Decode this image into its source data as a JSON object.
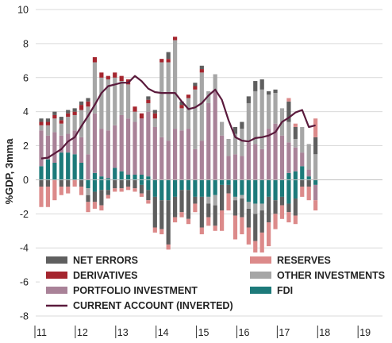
{
  "chart_data": {
    "type": "bar",
    "stacked": true,
    "ylabel": "%GDP, 3mma",
    "ylim": [
      -8,
      10
    ],
    "yticks": [
      -8,
      -6,
      -4,
      -2,
      0,
      2,
      4,
      6,
      8,
      10
    ],
    "xtick_labels": [
      "11",
      "12",
      "13",
      "14",
      "15",
      "16",
      "17",
      "18",
      "19"
    ],
    "grid": "horizontal",
    "legend_position": "bottom-inside",
    "colors": {
      "net_errors": "#5f5f5f",
      "derivatives": "#a5252e",
      "portfolio": "#a98298",
      "other": "#a6a6a6",
      "reserves": "#dc8a8a",
      "fdi": "#1d7a7a",
      "current_account": "#5a1a3c"
    },
    "series": [
      {
        "name": "NET ERRORS",
        "key": "net_errors",
        "values": [
          [
            0.2,
            -0.4
          ],
          [
            0.2,
            -0.4
          ],
          [
            0.2,
            0
          ],
          [
            0.2,
            -0.4
          ],
          [
            0.2,
            -0.4
          ],
          [
            0.2,
            0
          ],
          [
            0.2,
            -0.4
          ],
          [
            0.2,
            -0.4
          ],
          [
            0,
            -0.6
          ],
          [
            0,
            -0.9
          ],
          [
            0,
            -0.3
          ],
          [
            0,
            -0.5
          ],
          [
            0,
            -0.5
          ],
          [
            0,
            -0.4
          ],
          [
            0,
            -0.5
          ],
          [
            0,
            -0.5
          ],
          [
            0.2,
            -0.6
          ],
          [
            0.2,
            -1.8
          ],
          [
            0,
            -1.7
          ],
          [
            0.4,
            -2.6
          ],
          [
            0,
            -1.2
          ],
          [
            0.2,
            -1.3
          ],
          [
            0,
            -1.7
          ],
          [
            0.2,
            -0.4
          ],
          [
            0.2,
            -1.8
          ],
          [
            0,
            -0.8
          ],
          [
            0,
            -1.2
          ],
          [
            0,
            -1.5
          ],
          [
            0,
            -0.5
          ],
          [
            0.4,
            -0.9
          ],
          [
            0.4,
            -1.1
          ],
          [
            0.4,
            -1.1
          ],
          [
            0.6,
            -1.6
          ],
          [
            0.6,
            -1.3
          ],
          [
            0.2,
            -1.5
          ],
          [
            0.2,
            -0.8
          ],
          [
            0,
            -0.5
          ],
          [
            1.2,
            -0.5
          ],
          [
            0.7,
            -1.0
          ],
          [
            0,
            -0.4
          ],
          [
            0,
            -0.4
          ],
          [
            1,
            0
          ]
        ]
      },
      {
        "name": "DERIVATIVES",
        "key": "derivatives",
        "values": [
          [
            0.2,
            0
          ],
          [
            0.2,
            0
          ],
          [
            0.2,
            0
          ],
          [
            0.2,
            0
          ],
          [
            0.2,
            0
          ],
          [
            0.2,
            0
          ],
          [
            0.3,
            0
          ],
          [
            0.3,
            0
          ],
          [
            0.3,
            0
          ],
          [
            0.3,
            0
          ],
          [
            0.2,
            0
          ],
          [
            0.3,
            0
          ],
          [
            0.3,
            0
          ],
          [
            0.3,
            0
          ],
          [
            0.3,
            0
          ],
          [
            0.3,
            0
          ],
          [
            0.2,
            0
          ],
          [
            0.3,
            0
          ],
          [
            0.2,
            0
          ],
          [
            0.2,
            0
          ],
          [
            0.2,
            0
          ],
          [
            0.2,
            0
          ],
          [
            0.2,
            0
          ],
          [
            0.2,
            0
          ],
          [
            0.2,
            0
          ],
          [
            0,
            0
          ],
          [
            0,
            0
          ],
          [
            0,
            0
          ],
          [
            0,
            0
          ],
          [
            0,
            0
          ],
          [
            0,
            0
          ],
          [
            0,
            0
          ],
          [
            0,
            0
          ],
          [
            0,
            0
          ],
          [
            0,
            0
          ],
          [
            0,
            0
          ],
          [
            0,
            0
          ],
          [
            0,
            0
          ],
          [
            0,
            0
          ],
          [
            0,
            0
          ],
          [
            0,
            0
          ],
          [
            0,
            0
          ]
        ]
      },
      {
        "name": "RESERVES",
        "key": "reserves",
        "values": [
          [
            0,
            -1.2
          ],
          [
            0,
            -1.2
          ],
          [
            0,
            -1.2
          ],
          [
            0,
            -0.5
          ],
          [
            0,
            -0.4
          ],
          [
            0,
            -0.4
          ],
          [
            0,
            -0.5
          ],
          [
            0,
            -0.6
          ],
          [
            0,
            -0.4
          ],
          [
            0,
            -0.3
          ],
          [
            0,
            -0.2
          ],
          [
            0,
            -0.2
          ],
          [
            0,
            -0.2
          ],
          [
            0,
            -0.2
          ],
          [
            0,
            -0.2
          ],
          [
            0,
            -0.2
          ],
          [
            0,
            -0.2
          ],
          [
            0,
            -0.3
          ],
          [
            0,
            -0.3
          ],
          [
            0,
            -0.3
          ],
          [
            0,
            -0.3
          ],
          [
            0,
            -0.3
          ],
          [
            0,
            -0.3
          ],
          [
            0,
            -0.5
          ],
          [
            0,
            -0.4
          ],
          [
            0,
            -0.5
          ],
          [
            0,
            -0.3
          ],
          [
            0,
            -1.2
          ],
          [
            0,
            -1.0
          ],
          [
            0,
            -1.4
          ],
          [
            0,
            -1.0
          ],
          [
            0,
            -1.0
          ],
          [
            0,
            -1.4
          ],
          [
            0,
            -1.4
          ],
          [
            0,
            -1.4
          ],
          [
            0,
            -0.9
          ],
          [
            0,
            -0.8
          ],
          [
            0.2,
            -0.6
          ],
          [
            0.2,
            -0.5
          ],
          [
            0,
            -0.6
          ],
          [
            0,
            -0.8
          ],
          [
            1.1,
            -0.6
          ]
        ]
      },
      {
        "name": "OTHER INVESTMENTS",
        "key": "other",
        "values": [
          [
            0.3,
            0
          ],
          [
            0.6,
            0
          ],
          [
            0.8,
            0
          ],
          [
            0.7,
            0
          ],
          [
            1.0,
            0
          ],
          [
            0.9,
            0
          ],
          [
            1.6,
            0
          ],
          [
            2.8,
            -0.4
          ],
          [
            3.0,
            0
          ],
          [
            3.0,
            0
          ],
          [
            3.0,
            0
          ],
          [
            2.8,
            0
          ],
          [
            2.0,
            0
          ],
          [
            2.0,
            0
          ],
          [
            0.6,
            0
          ],
          [
            0,
            0
          ],
          [
            0.5,
            0
          ],
          [
            0.5,
            0
          ],
          [
            4.4,
            0
          ],
          [
            4.6,
            0
          ],
          [
            5.2,
            0
          ],
          [
            1.3,
            0
          ],
          [
            1.8,
            0
          ],
          [
            3.5,
            0
          ],
          [
            4.0,
            0
          ],
          [
            0.7,
            -0.4
          ],
          [
            1.0,
            -0.6
          ],
          [
            0.8,
            0
          ],
          [
            1.0,
            0
          ],
          [
            1.2,
            -0.2
          ],
          [
            1.6,
            -0.2
          ],
          [
            2.3,
            -0.4
          ],
          [
            3.1,
            -0.6
          ],
          [
            3.5,
            -0.4
          ],
          [
            2.0,
            0
          ],
          [
            1.8,
            0
          ],
          [
            1.6,
            0
          ],
          [
            1.2,
            0
          ],
          [
            0.5,
            0
          ],
          [
            1.5,
            0
          ],
          [
            1.5,
            0
          ],
          [
            1.5,
            0
          ]
        ]
      },
      {
        "name": "PORTFOLIO INVESTMENT",
        "key": "portfolio",
        "values": [
          [
            2.1,
            0
          ],
          [
            1.4,
            0
          ],
          [
            1.8,
            0
          ],
          [
            1.0,
            0
          ],
          [
            1.1,
            0
          ],
          [
            1.4,
            0
          ],
          [
            1.5,
            0
          ],
          [
            1.5,
            0
          ],
          [
            3.5,
            0
          ],
          [
            2.8,
            0
          ],
          [
            2.8,
            0
          ],
          [
            2.5,
            0
          ],
          [
            3.3,
            0
          ],
          [
            3.3,
            0
          ],
          [
            3.1,
            0
          ],
          [
            3.3,
            0
          ],
          [
            3.8,
            0
          ],
          [
            3.1,
            0
          ],
          [
            2.5,
            0
          ],
          [
            2.3,
            0
          ],
          [
            3.0,
            0
          ],
          [
            2.9,
            0
          ],
          [
            3.0,
            0
          ],
          [
            1.8,
            0
          ],
          [
            2.3,
            0
          ],
          [
            4.5,
            0
          ],
          [
            5.2,
            0
          ],
          [
            2.6,
            0
          ],
          [
            1.4,
            0
          ],
          [
            1.5,
            0
          ],
          [
            1.4,
            0
          ],
          [
            2.2,
            0
          ],
          [
            2.1,
            0
          ],
          [
            1.8,
            0
          ],
          [
            3.0,
            0
          ],
          [
            3.3,
            0
          ],
          [
            2.6,
            0
          ],
          [
            1.8,
            0
          ],
          [
            1.4,
            0
          ],
          [
            0.8,
            0
          ],
          [
            0.4,
            0
          ],
          [
            0,
            -0.9
          ]
        ]
      },
      {
        "name": "FDI",
        "key": "fdi",
        "values": [
          [
            0.8,
            0
          ],
          [
            1.2,
            0
          ],
          [
            1.0,
            0
          ],
          [
            1.6,
            0
          ],
          [
            1.6,
            0
          ],
          [
            1.5,
            0
          ],
          [
            1.0,
            0
          ],
          [
            0,
            -0.5
          ],
          [
            0.4,
            -0.7
          ],
          [
            0.2,
            -0.6
          ],
          [
            0.1,
            -0.6
          ],
          [
            0.7,
            0
          ],
          [
            0.5,
            0
          ],
          [
            0.3,
            0
          ],
          [
            0.3,
            0
          ],
          [
            0.3,
            -0.3
          ],
          [
            0.2,
            -0.6
          ],
          [
            0,
            -1.0
          ],
          [
            0,
            -1.2
          ],
          [
            0,
            -1.2
          ],
          [
            0,
            -1.0
          ],
          [
            0,
            -0.6
          ],
          [
            0,
            -0.6
          ],
          [
            0,
            -1.0
          ],
          [
            0,
            -1.0
          ],
          [
            0,
            -1.0
          ],
          [
            0,
            -0.9
          ],
          [
            0,
            -0.3
          ],
          [
            0,
            -0.3
          ],
          [
            0,
            -1.0
          ],
          [
            0,
            -0.9
          ],
          [
            0,
            -1.3
          ],
          [
            0,
            -1.4
          ],
          [
            0,
            -1.4
          ],
          [
            0,
            -1.0
          ],
          [
            0,
            -1.2
          ],
          [
            0,
            -1.0
          ],
          [
            0.4,
            -1.4
          ],
          [
            0.5,
            -1.1
          ],
          [
            0.8,
            0
          ],
          [
            0.2,
            0
          ],
          [
            0,
            -0.3
          ]
        ]
      },
      {
        "name": "CURRENT ACCOUNT (INVERTED)",
        "key": "current_account",
        "type": "line",
        "values": [
          1.25,
          1.3,
          1.55,
          1.8,
          2.25,
          2.5,
          3.15,
          3.75,
          4.4,
          5.1,
          5.5,
          5.6,
          5.7,
          5.7,
          6.1,
          5.8,
          5.35,
          5.15,
          5.1,
          5.1,
          5.1,
          4.6,
          4.15,
          4.25,
          4.5,
          4.95,
          5.3,
          4.7,
          3.5,
          2.5,
          2.3,
          2.25,
          2.45,
          2.5,
          2.6,
          2.8,
          3.4,
          3.65,
          3.95,
          4.1,
          3.1,
          3.2
        ]
      }
    ],
    "legend": [
      {
        "key": "net_errors",
        "label": "NET ERRORS",
        "marker": "rect"
      },
      {
        "key": "reserves",
        "label": "RESERVES",
        "marker": "rect"
      },
      {
        "key": "derivatives",
        "label": "DERIVATIVES",
        "marker": "rect"
      },
      {
        "key": "other",
        "label": "OTHER INVESTMENTS",
        "marker": "rect"
      },
      {
        "key": "portfolio",
        "label": "PORTFOLIO INVESTMENT",
        "marker": "rect"
      },
      {
        "key": "fdi",
        "label": "FDI",
        "marker": "rect"
      },
      {
        "key": "current_account",
        "label": "CURRENT ACCOUNT (INVERTED)",
        "marker": "line"
      }
    ]
  }
}
